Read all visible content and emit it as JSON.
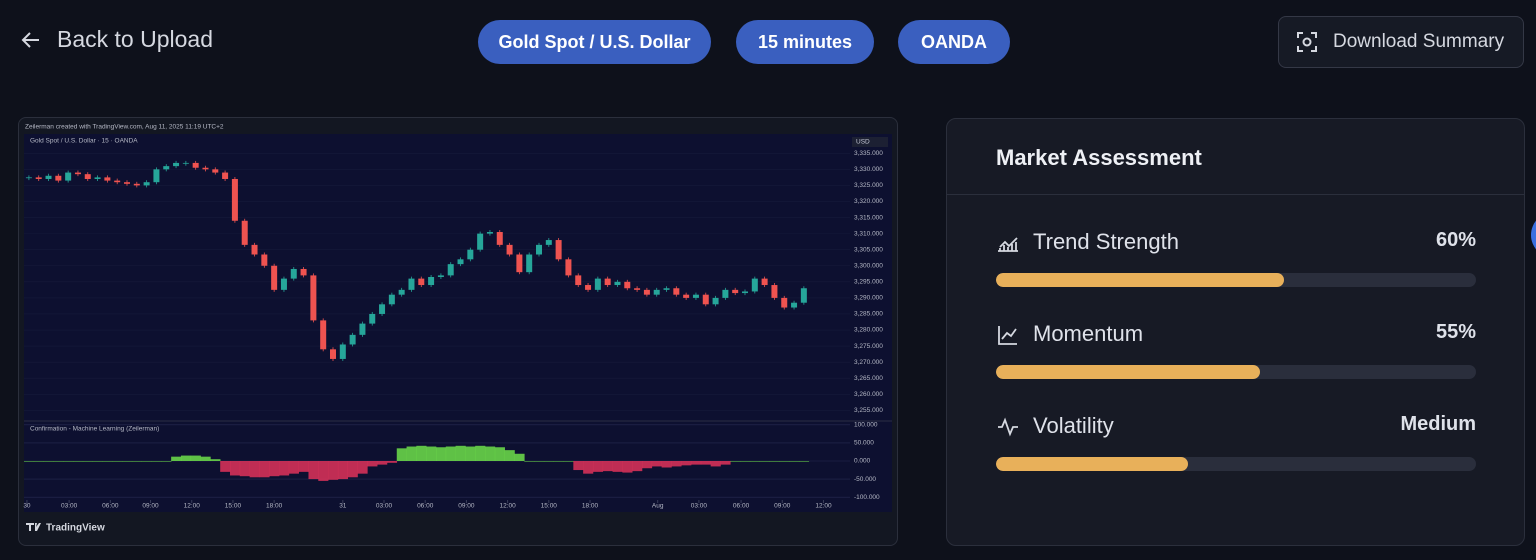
{
  "header": {
    "back": "Back to Upload",
    "tags": [
      "Gold Spot / U.S. Dollar",
      "15 minutes",
      "OANDA"
    ],
    "download": "Download Summary"
  },
  "chart_data": {
    "type": "candlestick",
    "watermark": "Zeilerman created with TradingView.com, Aug 11, 2025 11:19 UTC+2",
    "title": "Gold Spot / U.S. Dollar · 15 · OANDA",
    "currency": "USD",
    "closes": [
      3327.5,
      3327,
      3328,
      3326.5,
      3329,
      3328.5,
      3327,
      3327.5,
      3326.5,
      3326,
      3325.5,
      3325,
      3326,
      3330,
      3331,
      3332,
      3332,
      3330.5,
      3330,
      3329,
      3327,
      3314,
      3306.5,
      3303.5,
      3300,
      3292.5,
      3296,
      3299,
      3297,
      3283,
      3274,
      3271,
      3275.5,
      3278.5,
      3282,
      3285,
      3288,
      3291,
      3292.5,
      3296,
      3294,
      3296.5,
      3297,
      3300.5,
      3302,
      3305,
      3310,
      3310.5,
      3306.5,
      3303.5,
      3298,
      3303.5,
      3306.5,
      3308,
      3302,
      3297,
      3294,
      3292.5,
      3296,
      3294,
      3295,
      3293,
      3292.5,
      3291,
      3292.5,
      3293,
      3291,
      3290,
      3291,
      3288,
      3290,
      3292.5,
      3291.5,
      3292,
      3296,
      3294,
      3290,
      3287,
      3288.5,
      3293
    ],
    "xlim": [
      0,
      84
    ],
    "xticks": [
      {
        "value": 0.3,
        "label": "30"
      },
      {
        "value": 4.6,
        "label": "03:00"
      },
      {
        "value": 8.8,
        "label": "06:00"
      },
      {
        "value": 12.9,
        "label": "09:00"
      },
      {
        "value": 17.1,
        "label": "12:00"
      },
      {
        "value": 21.3,
        "label": "15:00"
      },
      {
        "value": 25.5,
        "label": "18:00"
      },
      {
        "value": 32.5,
        "label": "31"
      },
      {
        "value": 36.7,
        "label": "03:00"
      },
      {
        "value": 40.9,
        "label": "06:00"
      },
      {
        "value": 45.1,
        "label": "09:00"
      },
      {
        "value": 49.3,
        "label": "12:00"
      },
      {
        "value": 53.5,
        "label": "15:00"
      },
      {
        "value": 57.7,
        "label": "18:00"
      },
      {
        "value": 64.6,
        "label": "Aug"
      },
      {
        "value": 68.8,
        "label": "03:00"
      },
      {
        "value": 73.1,
        "label": "06:00"
      },
      {
        "value": 77.3,
        "label": "09:00"
      },
      {
        "value": 81.5,
        "label": "12:00"
      }
    ],
    "ylim": [
      3252,
      3341
    ],
    "yticks": [
      {
        "value": 3335,
        "label": "3,335.000"
      },
      {
        "value": 3330,
        "label": "3,330.000"
      },
      {
        "value": 3325,
        "label": "3,325.000"
      },
      {
        "value": 3320,
        "label": "3,320.000"
      },
      {
        "value": 3315,
        "label": "3,315.000"
      },
      {
        "value": 3310,
        "label": "3,310.000"
      },
      {
        "value": 3305,
        "label": "3,305.000"
      },
      {
        "value": 3300,
        "label": "3,300.000"
      },
      {
        "value": 3295,
        "label": "3,295.000"
      },
      {
        "value": 3290,
        "label": "3,290.000"
      },
      {
        "value": 3285,
        "label": "3,285.000"
      },
      {
        "value": 3280,
        "label": "3,280.000"
      },
      {
        "value": 3275,
        "label": "3,275.000"
      },
      {
        "value": 3270,
        "label": "3,270.000"
      },
      {
        "value": 3265,
        "label": "3,265.000"
      },
      {
        "value": 3260,
        "label": "3,260.000"
      },
      {
        "value": 3255,
        "label": "3,255.000"
      }
    ],
    "up_color": "#26a69a",
    "down_color": "#ef5350",
    "indicator": {
      "name": "Confirmation - Machine Learning (Zeilerman)",
      "values": [
        0,
        0,
        0,
        0,
        0,
        0,
        0,
        0,
        0,
        0,
        0,
        0,
        0,
        0,
        0,
        12,
        15,
        15,
        12,
        5,
        -30,
        -40,
        -42,
        -45,
        -45,
        -42,
        -40,
        -35,
        -30,
        -50,
        -55,
        -52,
        -50,
        -45,
        -35,
        -15,
        -10,
        -5,
        35,
        40,
        42,
        40,
        38,
        40,
        42,
        40,
        42,
        40,
        38,
        30,
        20,
        0,
        0,
        0,
        0,
        0,
        -25,
        -35,
        -30,
        -28,
        -30,
        -32,
        -28,
        -20,
        -15,
        -18,
        -15,
        -12,
        -10,
        -10,
        -15,
        -10,
        0,
        0,
        0,
        0,
        0,
        0,
        0,
        0
      ],
      "ylim": [
        -105,
        105
      ],
      "yticks": [
        {
          "value": 100,
          "label": "100.000"
        },
        {
          "value": 50,
          "label": "50.000"
        },
        {
          "value": 0,
          "label": "0.000"
        },
        {
          "value": -50,
          "label": "-50.000"
        },
        {
          "value": -100,
          "label": "-100.000"
        }
      ],
      "pos_color": "#6fe04a",
      "neg_color": "#e0325a"
    },
    "brand": "TradingView"
  },
  "assessment": {
    "title": "Market Assessment",
    "range": [
      0,
      100
    ],
    "bar_color": "#e8b05a",
    "metrics": [
      {
        "label": "Trend Strength",
        "value": 60,
        "value_label": "60%"
      },
      {
        "label": "Momentum",
        "value": 55,
        "value_label": "55%"
      },
      {
        "label": "Volatility",
        "value": 40,
        "value_label": "Medium"
      }
    ]
  }
}
